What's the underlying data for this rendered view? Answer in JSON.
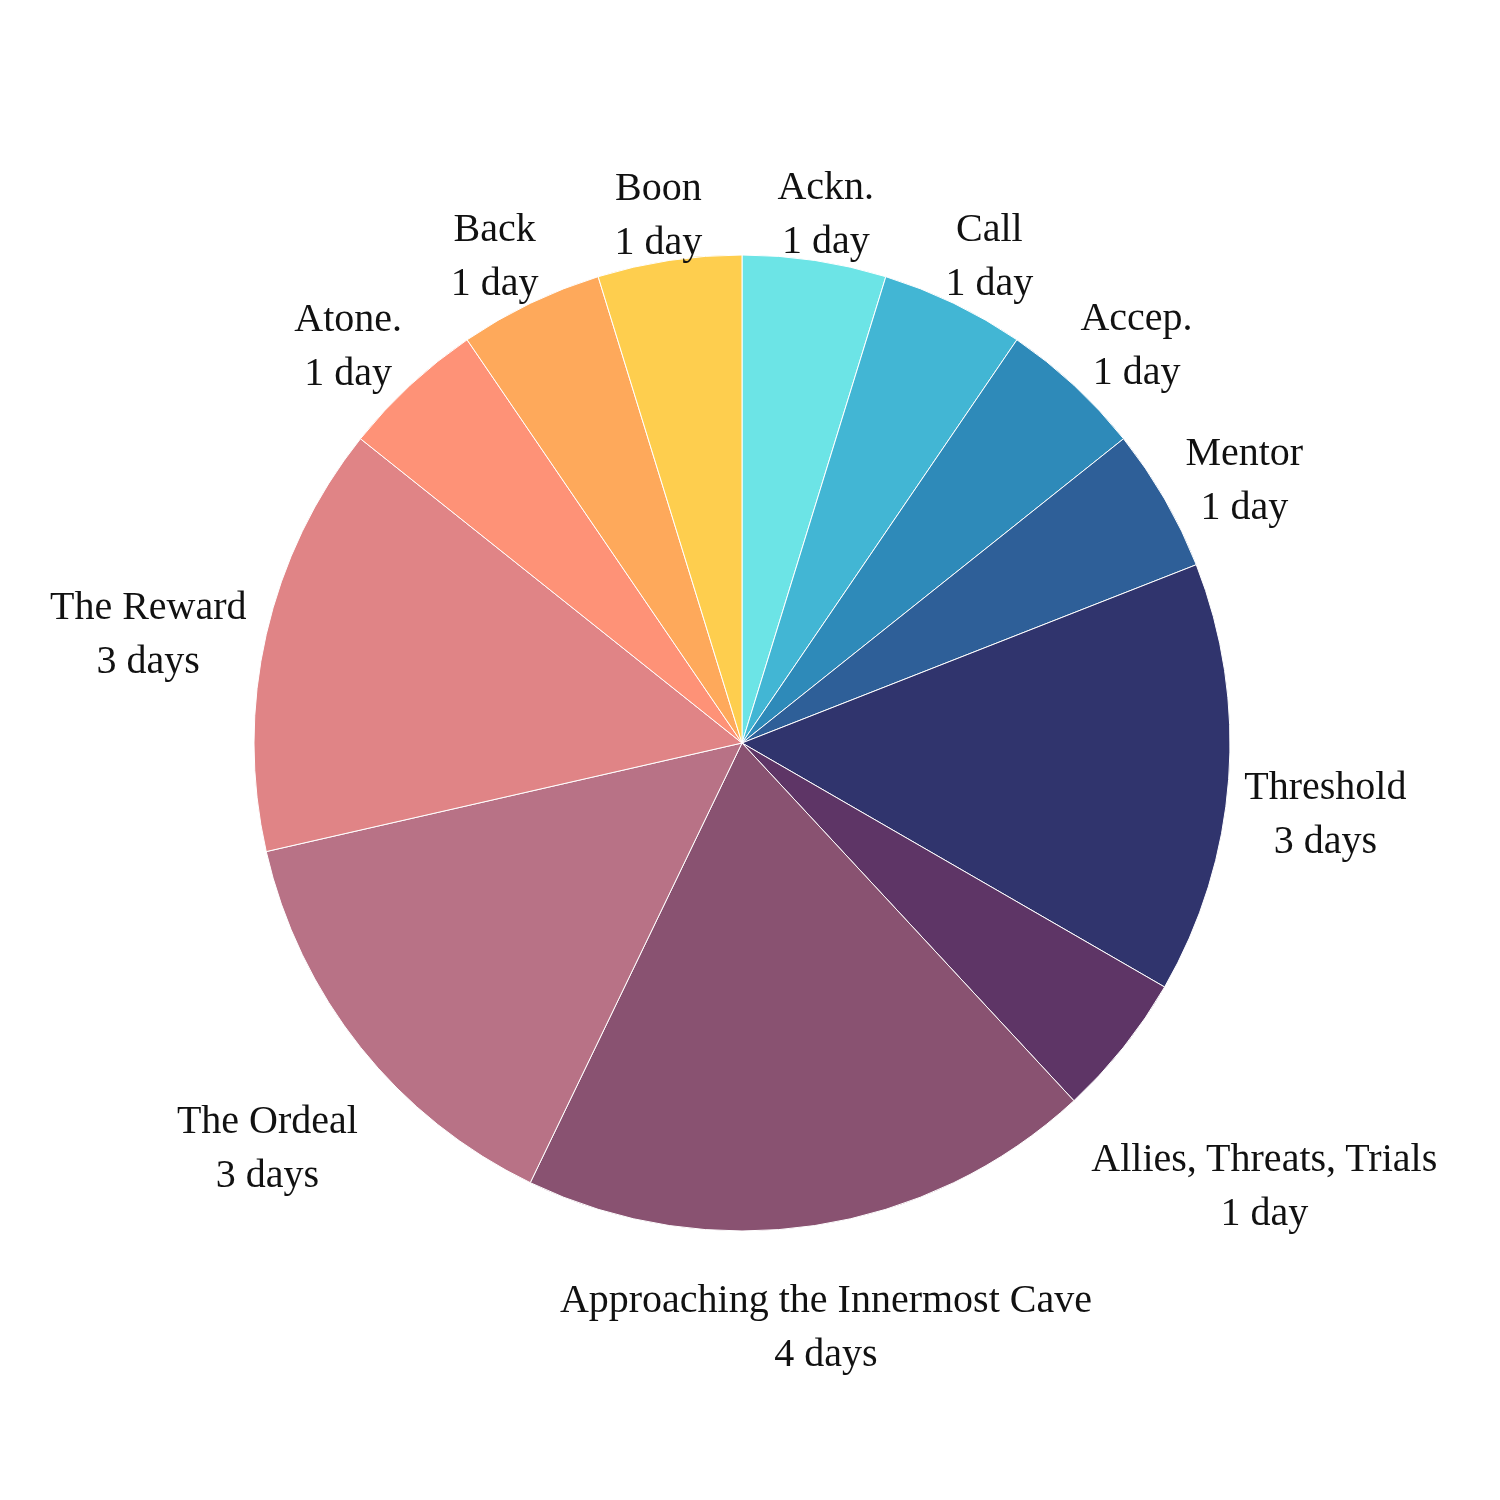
{
  "chart_data": {
    "type": "pie",
    "categories": [
      "Ackn.",
      "Call",
      "Accep.",
      "Mentor",
      "Threshold",
      "Allies, Threats, Trials",
      "Approaching the Innermost Cave",
      "The Ordeal",
      "The Reward",
      "Atone.",
      "Back",
      "Boon"
    ],
    "values": [
      1,
      1,
      1,
      1,
      3,
      1,
      4,
      3,
      3,
      1,
      1,
      1
    ],
    "value_labels": [
      "1 day",
      "1 day",
      "1 day",
      "1 day",
      "3 days",
      "1 day",
      "4 days",
      "3 days",
      "3 days",
      "1 day",
      "1 day",
      "1 day"
    ],
    "colors": [
      "#6ce4e6",
      "#42b6d4",
      "#2e8ab9",
      "#2e5f98",
      "#30346d",
      "#5e3566",
      "#895271",
      "#b87286",
      "#e08486",
      "#fe9277",
      "#fea95b",
      "#fece4e"
    ]
  }
}
